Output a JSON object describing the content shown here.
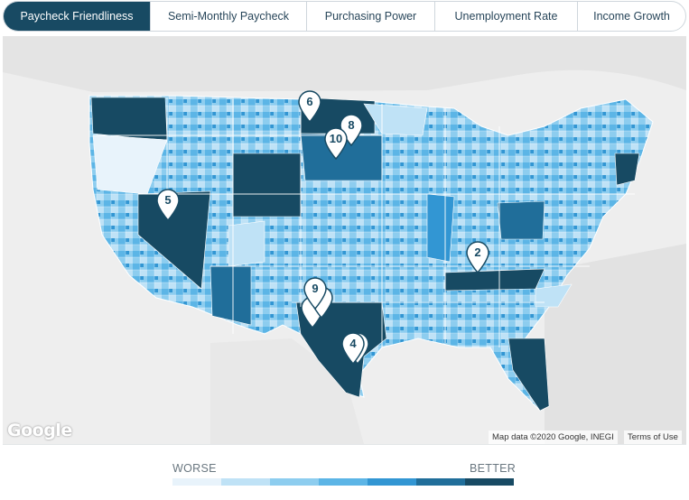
{
  "tabs": [
    {
      "label": "Paycheck Friendliness",
      "active": true
    },
    {
      "label": "Semi-Monthly Paycheck",
      "active": false
    },
    {
      "label": "Purchasing Power",
      "active": false
    },
    {
      "label": "Unemployment Rate",
      "active": false
    },
    {
      "label": "Income Growth",
      "active": false
    }
  ],
  "map": {
    "google_logo": "Google",
    "attribution": "Map data ©2020 Google, INEGI",
    "terms": "Terms of Use",
    "pins": [
      {
        "label": "6"
      },
      {
        "label": "8"
      },
      {
        "label": "10"
      },
      {
        "label": "5"
      },
      {
        "label": "2"
      },
      {
        "label": "9"
      },
      {
        "label": "4"
      }
    ]
  },
  "legend": {
    "worse": "WORSE",
    "better": "BETTER",
    "colors": [
      "#e8f3fb",
      "#bfe2f6",
      "#8dcdef",
      "#5cb5e6",
      "#3296d3",
      "#206e9a",
      "#174a63"
    ]
  }
}
